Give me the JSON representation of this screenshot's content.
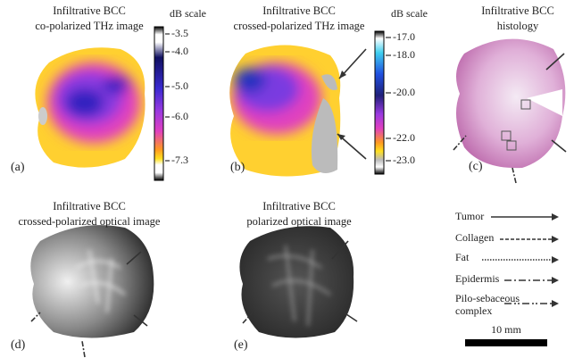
{
  "panels": [
    {
      "label": "(a)",
      "title": [
        "Infiltrative BCC",
        "co-polarized THz image"
      ],
      "scale": {
        "title": "dB scale",
        "ticks": [
          "-3.5",
          "-4.0",
          "-5.0",
          "-6.0",
          "-7.3"
        ]
      }
    },
    {
      "label": "(b)",
      "title": [
        "Infiltrative BCC",
        "crossed-polarized THz image"
      ],
      "scale": {
        "title": "dB scale",
        "ticks": [
          "-17.0",
          "-18.0",
          "-20.0",
          "-22.0",
          "-23.0"
        ]
      }
    },
    {
      "label": "(c)",
      "title": [
        "Infiltrative BCC",
        "histology"
      ]
    },
    {
      "label": "(d)",
      "title": [
        "Infiltrative BCC",
        "crossed-polarized optical image"
      ]
    },
    {
      "label": "(e)",
      "title": [
        "Infiltrative BCC",
        "polarized optical image"
      ]
    }
  ],
  "legend": {
    "items": [
      [
        "Tumor"
      ],
      [
        "Collagen"
      ],
      [
        "Fat"
      ],
      [
        "Epidermis"
      ],
      [
        "Pilo-sebaceous",
        "complex"
      ]
    ]
  },
  "scale_bar": "10 mm"
}
